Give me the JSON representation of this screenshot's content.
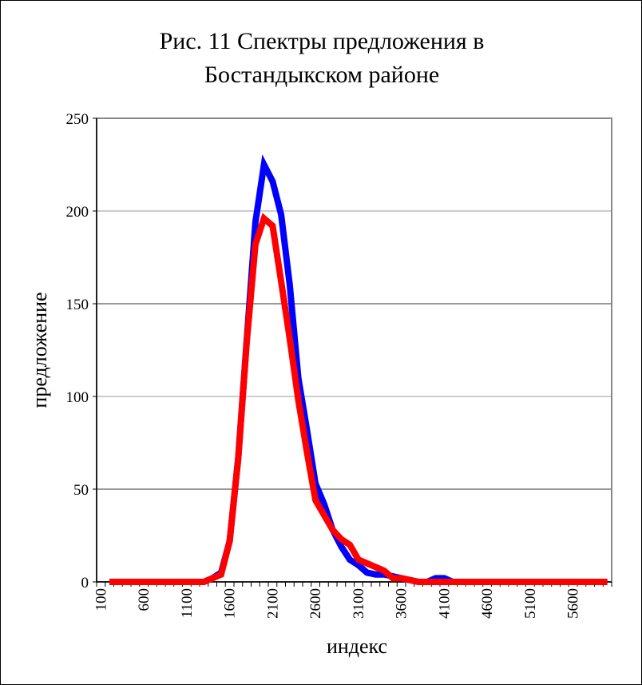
{
  "chart_data": {
    "type": "line",
    "title_line1": "Рис. 11 Спектры предложения в",
    "title_line2": "Бостандыкском районе",
    "xlabel": "индекс",
    "ylabel": "предложение",
    "ylim": [
      0,
      250
    ],
    "yticks": [
      0,
      50,
      100,
      150,
      200,
      250
    ],
    "x_start": 100,
    "x_step": 100,
    "x_count": 60,
    "xtick_labels": [
      "100",
      "600",
      "1100",
      "1600",
      "2100",
      "2600",
      "3100",
      "3600",
      "4100",
      "4600",
      "5100",
      "5600"
    ],
    "grid": true,
    "legend": "none",
    "series": [
      {
        "name": "blue",
        "color": "#0000ff",
        "x_first": 200,
        "values": [
          0,
          0,
          0,
          0,
          0,
          0,
          0,
          0,
          0,
          0,
          0,
          0,
          2,
          5,
          22,
          67,
          131,
          194,
          225,
          216,
          198,
          160,
          110,
          82,
          53,
          42,
          28,
          19,
          12,
          9,
          5,
          4,
          4,
          3,
          2,
          1,
          0,
          0,
          2,
          2,
          0,
          0,
          0,
          0,
          0,
          0,
          0,
          0,
          0,
          0,
          0,
          0,
          0,
          0,
          0,
          0,
          0,
          0,
          0
        ]
      },
      {
        "name": "red",
        "color": "#ff0000",
        "x_first": 200,
        "values": [
          0,
          0,
          0,
          0,
          0,
          0,
          0,
          0,
          0,
          0,
          0,
          0,
          2,
          4,
          22,
          67,
          130,
          182,
          196,
          192,
          162,
          131,
          98,
          70,
          44,
          36,
          28,
          23,
          20,
          12,
          10,
          8,
          6,
          2,
          2,
          1,
          0,
          0,
          0,
          0,
          0,
          0,
          0,
          0,
          0,
          0,
          0,
          0,
          0,
          0,
          0,
          0,
          0,
          0,
          0,
          0,
          0,
          0,
          0
        ]
      }
    ]
  }
}
